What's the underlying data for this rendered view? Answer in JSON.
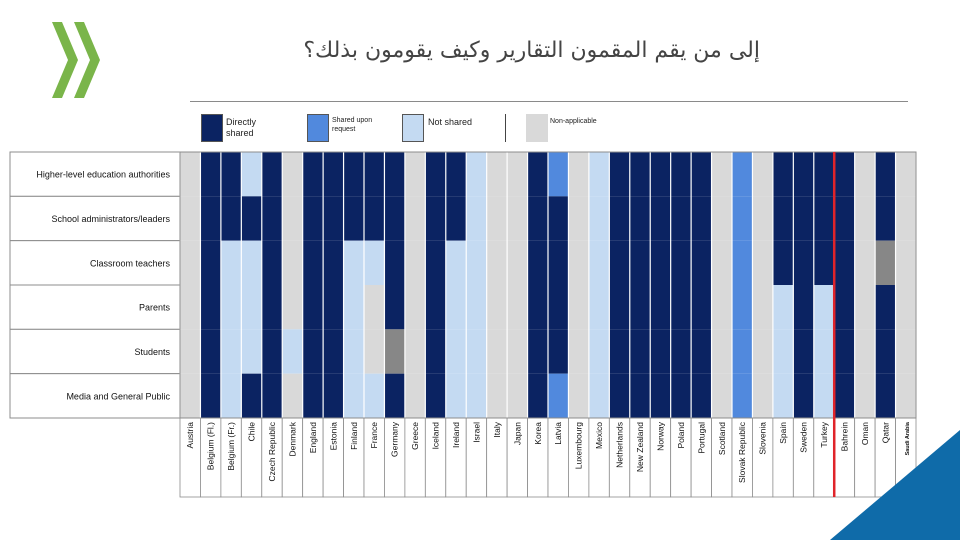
{
  "title": "إلى من يقم المقمون التقارير وكيف يقومون بذلك؟",
  "logo": {
    "icon": "double-chevron-logo-icon",
    "color": "#7ab54a"
  },
  "legend": [
    {
      "key": "D",
      "label_lines": [
        "Directly",
        "shared"
      ],
      "color": "#0b2362"
    },
    {
      "key": "R",
      "label_lines": [
        "Shared upon",
        "request"
      ],
      "color": "#5189dd"
    },
    {
      "key": "N",
      "label_lines": [
        "Not shared"
      ],
      "color": "#c4daf2"
    },
    {
      "key": "X",
      "label_lines": [
        "Non-applicable"
      ],
      "color": "#d9d9d9"
    }
  ],
  "extra_colors": {
    "other": "#878787",
    "grid": "#ffffff",
    "highlight_line": "#e0242a",
    "accent": "#0f6ba9"
  },
  "chart_data": {
    "type": "heatmap",
    "rows": [
      "Higher-level education authorities",
      "School administrators/leaders",
      "Classroom teachers",
      "Parents",
      "Students",
      "Media and General Public"
    ],
    "columns": [
      "Austria",
      "Belgium (Fl.)",
      "Belgium (Fr.)",
      "Chile",
      "Czech Republic",
      "Denmark",
      "England",
      "Estonia",
      "Finland",
      "France",
      "Germany",
      "Greece",
      "Iceland",
      "Ireland",
      "Israel",
      "Italy",
      "Japan",
      "Korea",
      "Latvia",
      "Luxembourg",
      "Mexico",
      "Netherlands",
      "New Zealand",
      "Norway",
      "Poland",
      "Portugal",
      "Scotland",
      "Slovak Republic",
      "Slovenia",
      "Spain",
      "Sweden",
      "Turkey",
      "Bahrein",
      "Oman",
      "Qatar",
      "Saudi Arabia"
    ],
    "cells": [
      [
        "X",
        "D",
        "D",
        "N",
        "D",
        "X",
        "D",
        "D",
        "D",
        "D",
        "D",
        "X",
        "D",
        "D",
        "N",
        "X",
        "X",
        "D",
        "R",
        "X",
        "N",
        "D",
        "D",
        "D",
        "D",
        "D",
        "X",
        "R",
        "X",
        "D",
        "D",
        "D",
        "D",
        "X",
        "D",
        "X"
      ],
      [
        "X",
        "D",
        "D",
        "D",
        "D",
        "X",
        "D",
        "D",
        "D",
        "D",
        "D",
        "X",
        "D",
        "D",
        "N",
        "X",
        "X",
        "D",
        "D",
        "X",
        "N",
        "D",
        "D",
        "D",
        "D",
        "D",
        "X",
        "R",
        "X",
        "D",
        "D",
        "D",
        "D",
        "X",
        "D",
        "X"
      ],
      [
        "X",
        "D",
        "N",
        "N",
        "D",
        "X",
        "D",
        "D",
        "N",
        "N",
        "D",
        "X",
        "D",
        "N",
        "N",
        "X",
        "X",
        "D",
        "D",
        "X",
        "N",
        "D",
        "D",
        "D",
        "D",
        "D",
        "X",
        "R",
        "X",
        "D",
        "D",
        "D",
        "D",
        "X",
        "O",
        "X"
      ],
      [
        "X",
        "D",
        "N",
        "N",
        "D",
        "X",
        "D",
        "D",
        "N",
        "X",
        "D",
        "X",
        "D",
        "N",
        "N",
        "X",
        "X",
        "D",
        "D",
        "X",
        "N",
        "D",
        "D",
        "D",
        "D",
        "D",
        "X",
        "R",
        "X",
        "N",
        "D",
        "N",
        "D",
        "X",
        "D",
        "X"
      ],
      [
        "X",
        "D",
        "N",
        "N",
        "D",
        "N",
        "D",
        "D",
        "N",
        "X",
        "O",
        "X",
        "D",
        "N",
        "N",
        "X",
        "X",
        "D",
        "D",
        "X",
        "N",
        "D",
        "D",
        "D",
        "D",
        "D",
        "X",
        "R",
        "X",
        "N",
        "D",
        "N",
        "D",
        "X",
        "D",
        "X"
      ],
      [
        "X",
        "D",
        "N",
        "D",
        "D",
        "X",
        "D",
        "D",
        "N",
        "N",
        "D",
        "X",
        "D",
        "N",
        "N",
        "X",
        "X",
        "D",
        "R",
        "X",
        "N",
        "D",
        "D",
        "D",
        "D",
        "D",
        "X",
        "R",
        "X",
        "N",
        "D",
        "N",
        "D",
        "X",
        "D",
        "X"
      ]
    ],
    "highlight_after_column": "Turkey",
    "legend_position": "top"
  }
}
